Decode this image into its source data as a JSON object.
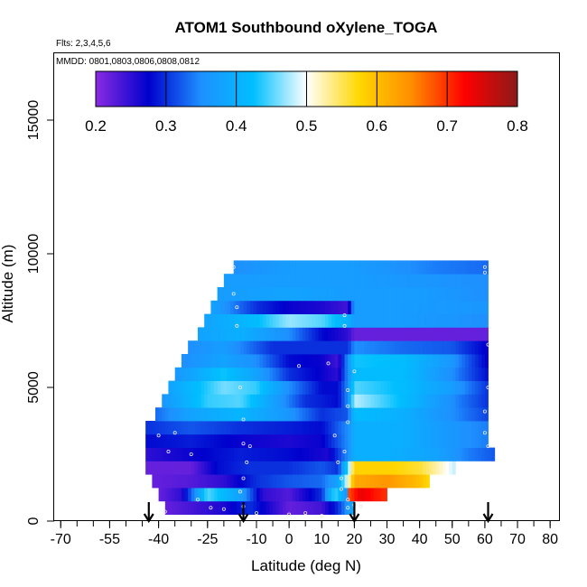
{
  "chart_data": {
    "type": "heatmap",
    "title": "ATOM1 Southbound oXylene_TOGA",
    "flights_label": "Flts: 2,3,4,5,6",
    "mmdd_label": "MMDD: 0801,0803,0806,0808,0812",
    "xlabel": "Latitude (deg N)",
    "ylabel": "Altitude (m)",
    "xlim": [
      -72,
      83
    ],
    "ylim": [
      0,
      17500
    ],
    "x_ticks": [
      -70,
      -55,
      -40,
      -25,
      -10,
      0,
      10,
      20,
      30,
      40,
      50,
      60,
      70,
      80
    ],
    "y_ticks": [
      0,
      5000,
      10000,
      15000
    ],
    "colorbar": {
      "range": [
        0.2,
        0.8
      ],
      "ticks": [
        0.2,
        0.3,
        0.4,
        0.5,
        0.6,
        0.7,
        0.8
      ],
      "colors": [
        "#8a2be2",
        "#0000cd",
        "#1e90ff",
        "#00bfff",
        "#ffffff",
        "#ffd700",
        "#ff8c00",
        "#ff0000",
        "#8b1a1a"
      ]
    },
    "arrow_latitudes": [
      -43,
      -14,
      20,
      61
    ],
    "layers": [
      {
        "alt": 500,
        "lat_start": -38,
        "lat_end": 20,
        "knots": [
          [
            -38,
            0.22
          ],
          [
            -20,
            0.26
          ],
          [
            -12,
            0.3
          ],
          [
            0,
            0.22
          ],
          [
            10,
            0.24
          ],
          [
            15,
            0.3
          ],
          [
            20,
            0.4
          ]
        ]
      },
      {
        "alt": 1000,
        "lat_start": -40,
        "lat_end": 18,
        "knots": [
          [
            -40,
            0.22
          ],
          [
            -33,
            0.25
          ],
          [
            -25,
            0.45
          ],
          [
            -15,
            0.38
          ],
          [
            -8,
            0.25
          ],
          [
            0,
            0.23
          ],
          [
            10,
            0.3
          ],
          [
            14,
            0.45
          ],
          [
            18,
            0.35
          ]
        ]
      },
      {
        "alt": 1000,
        "lat_start": 18,
        "lat_end": 30,
        "knots": [
          [
            18,
            0.68
          ],
          [
            22,
            0.74
          ],
          [
            27,
            0.71
          ],
          [
            30,
            0.7
          ]
        ]
      },
      {
        "alt": 1500,
        "lat_start": -42,
        "lat_end": 43,
        "knots": [
          [
            -42,
            0.22
          ],
          [
            -30,
            0.23
          ],
          [
            -20,
            0.25
          ],
          [
            -10,
            0.3
          ],
          [
            0,
            0.32
          ],
          [
            10,
            0.33
          ],
          [
            15,
            0.38
          ],
          [
            18,
            0.5
          ],
          [
            20,
            0.62
          ],
          [
            30,
            0.64
          ],
          [
            40,
            0.6
          ],
          [
            43,
            0.57
          ]
        ]
      },
      {
        "alt": 2000,
        "lat_start": -44,
        "lat_end": 51,
        "knots": [
          [
            -44,
            0.22
          ],
          [
            -30,
            0.22
          ],
          [
            -22,
            0.28
          ],
          [
            -12,
            0.3
          ],
          [
            0,
            0.3
          ],
          [
            10,
            0.32
          ],
          [
            15,
            0.3
          ],
          [
            18,
            0.45
          ],
          [
            20,
            0.58
          ],
          [
            30,
            0.58
          ],
          [
            40,
            0.56
          ],
          [
            46,
            0.52
          ],
          [
            51,
            0.48
          ]
        ]
      },
      {
        "alt": 2500,
        "lat_start": -44,
        "lat_end": 63,
        "knots": [
          [
            -44,
            0.25
          ],
          [
            -30,
            0.27
          ],
          [
            -15,
            0.29
          ],
          [
            0,
            0.28
          ],
          [
            12,
            0.26
          ],
          [
            18,
            0.35
          ],
          [
            20,
            0.4
          ],
          [
            30,
            0.4
          ],
          [
            45,
            0.38
          ],
          [
            55,
            0.34
          ],
          [
            63,
            0.32
          ]
        ]
      },
      {
        "alt": 3000,
        "lat_start": -44,
        "lat_end": 61,
        "knots": [
          [
            -44,
            0.28
          ],
          [
            -30,
            0.29
          ],
          [
            -15,
            0.27
          ],
          [
            0,
            0.26
          ],
          [
            10,
            0.27
          ],
          [
            18,
            0.35
          ],
          [
            20,
            0.4
          ],
          [
            35,
            0.4
          ],
          [
            50,
            0.36
          ],
          [
            61,
            0.34
          ]
        ]
      },
      {
        "alt": 3500,
        "lat_start": -44,
        "lat_end": 61,
        "knots": [
          [
            -44,
            0.3
          ],
          [
            -30,
            0.32
          ],
          [
            -15,
            0.3
          ],
          [
            0,
            0.29
          ],
          [
            10,
            0.28
          ],
          [
            18,
            0.35
          ],
          [
            20,
            0.4
          ],
          [
            35,
            0.4
          ],
          [
            50,
            0.36
          ],
          [
            61,
            0.34
          ]
        ]
      },
      {
        "alt": 4000,
        "lat_start": -41,
        "lat_end": 61,
        "knots": [
          [
            -41,
            0.33
          ],
          [
            -30,
            0.38
          ],
          [
            -15,
            0.41
          ],
          [
            0,
            0.36
          ],
          [
            10,
            0.3
          ],
          [
            18,
            0.32
          ],
          [
            20,
            0.42
          ],
          [
            35,
            0.4
          ],
          [
            50,
            0.35
          ],
          [
            61,
            0.31
          ]
        ]
      },
      {
        "alt": 4500,
        "lat_start": -39,
        "lat_end": 61,
        "knots": [
          [
            -39,
            0.36
          ],
          [
            -25,
            0.44
          ],
          [
            -15,
            0.45
          ],
          [
            -5,
            0.38
          ],
          [
            5,
            0.3
          ],
          [
            15,
            0.28
          ],
          [
            18,
            0.35
          ],
          [
            20,
            0.48
          ],
          [
            35,
            0.42
          ],
          [
            50,
            0.35
          ],
          [
            61,
            0.3
          ]
        ]
      },
      {
        "alt": 5000,
        "lat_start": -37,
        "lat_end": 61,
        "knots": [
          [
            -37,
            0.38
          ],
          [
            -20,
            0.46
          ],
          [
            -10,
            0.44
          ],
          [
            0,
            0.35
          ],
          [
            10,
            0.28
          ],
          [
            15,
            0.28
          ],
          [
            18,
            0.35
          ],
          [
            20,
            0.45
          ],
          [
            35,
            0.42
          ],
          [
            50,
            0.37
          ],
          [
            61,
            0.3
          ]
        ]
      },
      {
        "alt": 5500,
        "lat_start": -35,
        "lat_end": 61,
        "knots": [
          [
            -35,
            0.36
          ],
          [
            -20,
            0.43
          ],
          [
            -10,
            0.38
          ],
          [
            0,
            0.3
          ],
          [
            10,
            0.27
          ],
          [
            15,
            0.25
          ],
          [
            20,
            0.42
          ],
          [
            35,
            0.42
          ],
          [
            50,
            0.35
          ],
          [
            61,
            0.28
          ]
        ]
      },
      {
        "alt": 6000,
        "lat_start": -33,
        "lat_end": 61,
        "knots": [
          [
            -33,
            0.35
          ],
          [
            -20,
            0.38
          ],
          [
            -10,
            0.35
          ],
          [
            0,
            0.28
          ],
          [
            10,
            0.27
          ],
          [
            15,
            0.24
          ],
          [
            20,
            0.43
          ],
          [
            35,
            0.42
          ],
          [
            50,
            0.36
          ],
          [
            61,
            0.27
          ]
        ]
      },
      {
        "alt": 6500,
        "lat_start": -31,
        "lat_end": 61,
        "knots": [
          [
            -31,
            0.35
          ],
          [
            -20,
            0.37
          ],
          [
            -5,
            0.3
          ],
          [
            10,
            0.3
          ],
          [
            18,
            0.3
          ],
          [
            20,
            0.35
          ],
          [
            35,
            0.33
          ],
          [
            50,
            0.32
          ],
          [
            61,
            0.27
          ]
        ]
      },
      {
        "alt": 7000,
        "lat_start": -28,
        "lat_end": 61,
        "knots": [
          [
            -28,
            0.38
          ],
          [
            -15,
            0.4
          ],
          [
            0,
            0.35
          ],
          [
            10,
            0.28
          ],
          [
            18,
            0.25
          ],
          [
            20,
            0.22
          ],
          [
            35,
            0.22
          ],
          [
            61,
            0.22
          ]
        ]
      },
      {
        "alt": 7500,
        "lat_start": -26,
        "lat_end": 61,
        "knots": [
          [
            -26,
            0.38
          ],
          [
            -10,
            0.42
          ],
          [
            0,
            0.47
          ],
          [
            10,
            0.45
          ],
          [
            18,
            0.4
          ],
          [
            20,
            0.37
          ],
          [
            35,
            0.37
          ],
          [
            61,
            0.35
          ]
        ]
      },
      {
        "alt": 8000,
        "lat_start": -24,
        "lat_end": 61,
        "knots": [
          [
            -24,
            0.38
          ],
          [
            -10,
            0.3
          ],
          [
            0,
            0.27
          ],
          [
            10,
            0.26
          ],
          [
            18,
            0.24
          ],
          [
            20,
            0.37
          ],
          [
            35,
            0.37
          ],
          [
            61,
            0.36
          ]
        ]
      },
      {
        "alt": 8500,
        "lat_start": -22,
        "lat_end": 61,
        "knots": [
          [
            -22,
            0.37
          ],
          [
            0,
            0.38
          ],
          [
            20,
            0.37
          ],
          [
            40,
            0.37
          ],
          [
            61,
            0.35
          ]
        ]
      },
      {
        "alt": 9000,
        "lat_start": -20,
        "lat_end": 61,
        "knots": [
          [
            -20,
            0.37
          ],
          [
            0,
            0.37
          ],
          [
            20,
            0.37
          ],
          [
            40,
            0.36
          ],
          [
            61,
            0.35
          ]
        ]
      },
      {
        "alt": 9500,
        "lat_start": -17,
        "lat_end": 61,
        "knots": [
          [
            -17,
            0.35
          ],
          [
            0,
            0.37
          ],
          [
            20,
            0.37
          ],
          [
            45,
            0.34
          ],
          [
            61,
            0.33
          ]
        ]
      }
    ],
    "layer_thickness": 500,
    "sample_points": [
      [
        -17,
        9500
      ],
      [
        -17,
        8500
      ],
      [
        -16,
        8000
      ],
      [
        -16,
        7300
      ],
      [
        -15,
        5000
      ],
      [
        -14,
        3800
      ],
      [
        -14,
        2900
      ],
      [
        -12,
        2800
      ],
      [
        -13,
        2200
      ],
      [
        -14,
        1600
      ],
      [
        -15,
        1100
      ],
      [
        -14,
        550
      ],
      [
        -10,
        300
      ],
      [
        0,
        250
      ],
      [
        5,
        300
      ],
      [
        10,
        200
      ],
      [
        -37,
        2600
      ],
      [
        -40,
        3200
      ],
      [
        -35,
        3300
      ],
      [
        -30,
        2500
      ],
      [
        -28,
        800
      ],
      [
        -24,
        500
      ],
      [
        -20,
        450
      ],
      [
        -38,
        350
      ],
      [
        17,
        7700
      ],
      [
        17,
        7300
      ],
      [
        18,
        4900
      ],
      [
        18,
        4300
      ],
      [
        18,
        3700
      ],
      [
        17,
        2600
      ],
      [
        15,
        2200
      ],
      [
        16,
        1600
      ],
      [
        16,
        1200
      ],
      [
        18,
        800
      ],
      [
        18,
        500
      ],
      [
        20,
        600
      ],
      [
        22,
        550
      ],
      [
        60,
        9500
      ],
      [
        60,
        9300
      ],
      [
        61,
        6600
      ],
      [
        61,
        5000
      ],
      [
        60,
        4100
      ],
      [
        60,
        3300
      ],
      [
        61,
        2800
      ],
      [
        3,
        5800
      ],
      [
        12,
        5900
      ],
      [
        20,
        5600
      ],
      [
        14,
        3200
      ]
    ]
  }
}
